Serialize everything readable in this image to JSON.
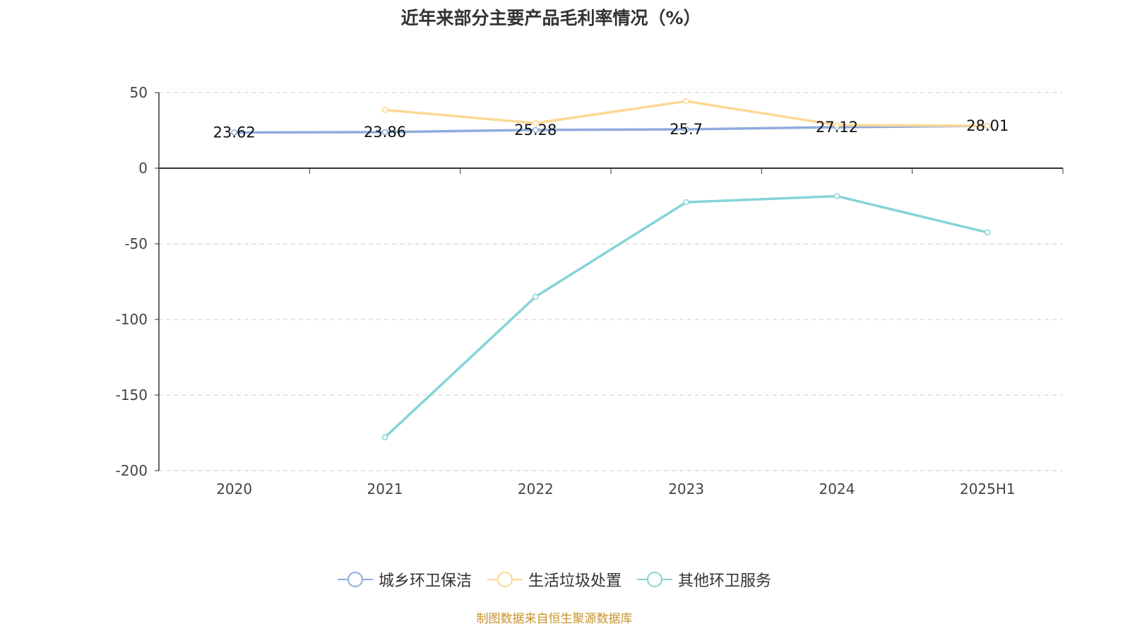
{
  "chart_data": {
    "type": "line",
    "title": "近年来部分主要产品毛利率情况（%）",
    "categories": [
      "2020",
      "2021",
      "2022",
      "2023",
      "2024",
      "2025H1"
    ],
    "ylim": [
      -200,
      50
    ],
    "yticks": [
      50,
      0,
      -50,
      -100,
      -150,
      -200
    ],
    "grid": true,
    "legend_position": "bottom",
    "series": [
      {
        "name": "城乡环卫保洁",
        "color": "#8fabdc",
        "values": [
          23.62,
          23.86,
          25.28,
          25.7,
          27.12,
          28.01
        ],
        "labels": [
          "23.62",
          "23.86",
          "25.28",
          "25.7",
          "27.12",
          "28.01"
        ]
      },
      {
        "name": "生活垃圾处置",
        "color": "#fcd894",
        "values": [
          null,
          38.5,
          29.8,
          44.3,
          28.5,
          28.0
        ]
      },
      {
        "name": "其他环卫服务",
        "color": "#84d4d6",
        "values": [
          null,
          -178,
          -85,
          -22.5,
          -18.5,
          -42.5
        ]
      }
    ]
  },
  "source": "制图数据来自恒生聚源数据库"
}
